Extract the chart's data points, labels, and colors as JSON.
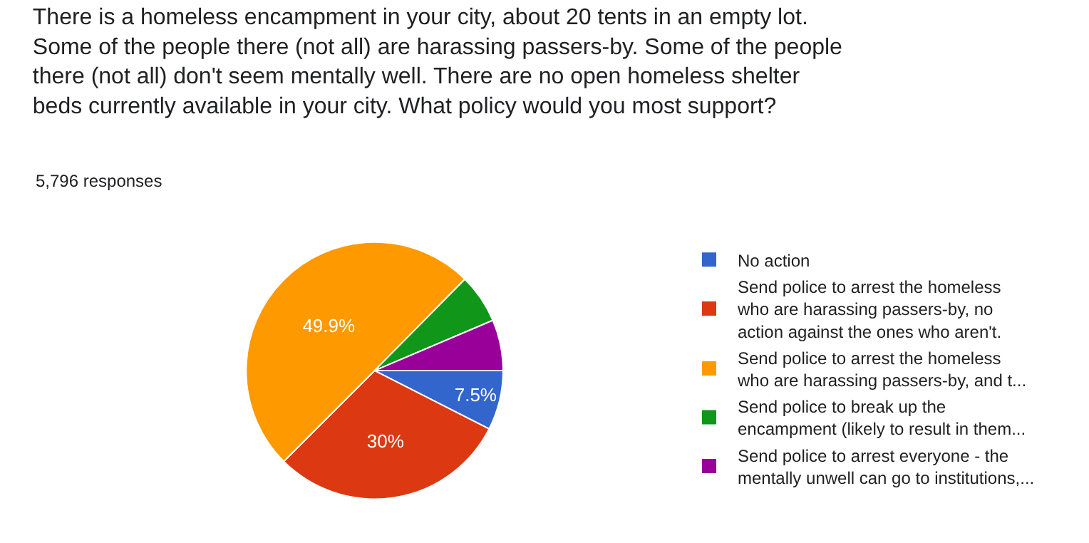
{
  "chart_data": {
    "type": "pie",
    "title": "There is a homeless encampment in your city, about 20 tents in an empty lot.\nSome of the people there (not all) are harassing passers-by. Some of the people\nthere (not all) don't seem mentally well. There are no open homeless shelter\nbeds currently available in your city. What policy would you most support?",
    "subtitle": "5,796 responses",
    "categories": [
      "No action",
      "Send police to arrest the homeless\nwho are harassing passers-by, no\naction against the ones who aren't.",
      "Send police to arrest the homeless\nwho are harassing passers-by, and t...",
      "Send police to break up the\nencampment (likely to result in them...",
      "Send police to arrest everyone - the\nmentally unwell can go to institutions,..."
    ],
    "values": [
      7.5,
      30,
      49.9,
      6.2,
      6.4
    ],
    "colors": [
      "#3366cc",
      "#dc3912",
      "#ff9900",
      "#109618",
      "#990099"
    ],
    "value_labels": [
      "7.5%",
      "30%",
      "49.9%",
      null,
      null
    ],
    "legend": "right"
  }
}
